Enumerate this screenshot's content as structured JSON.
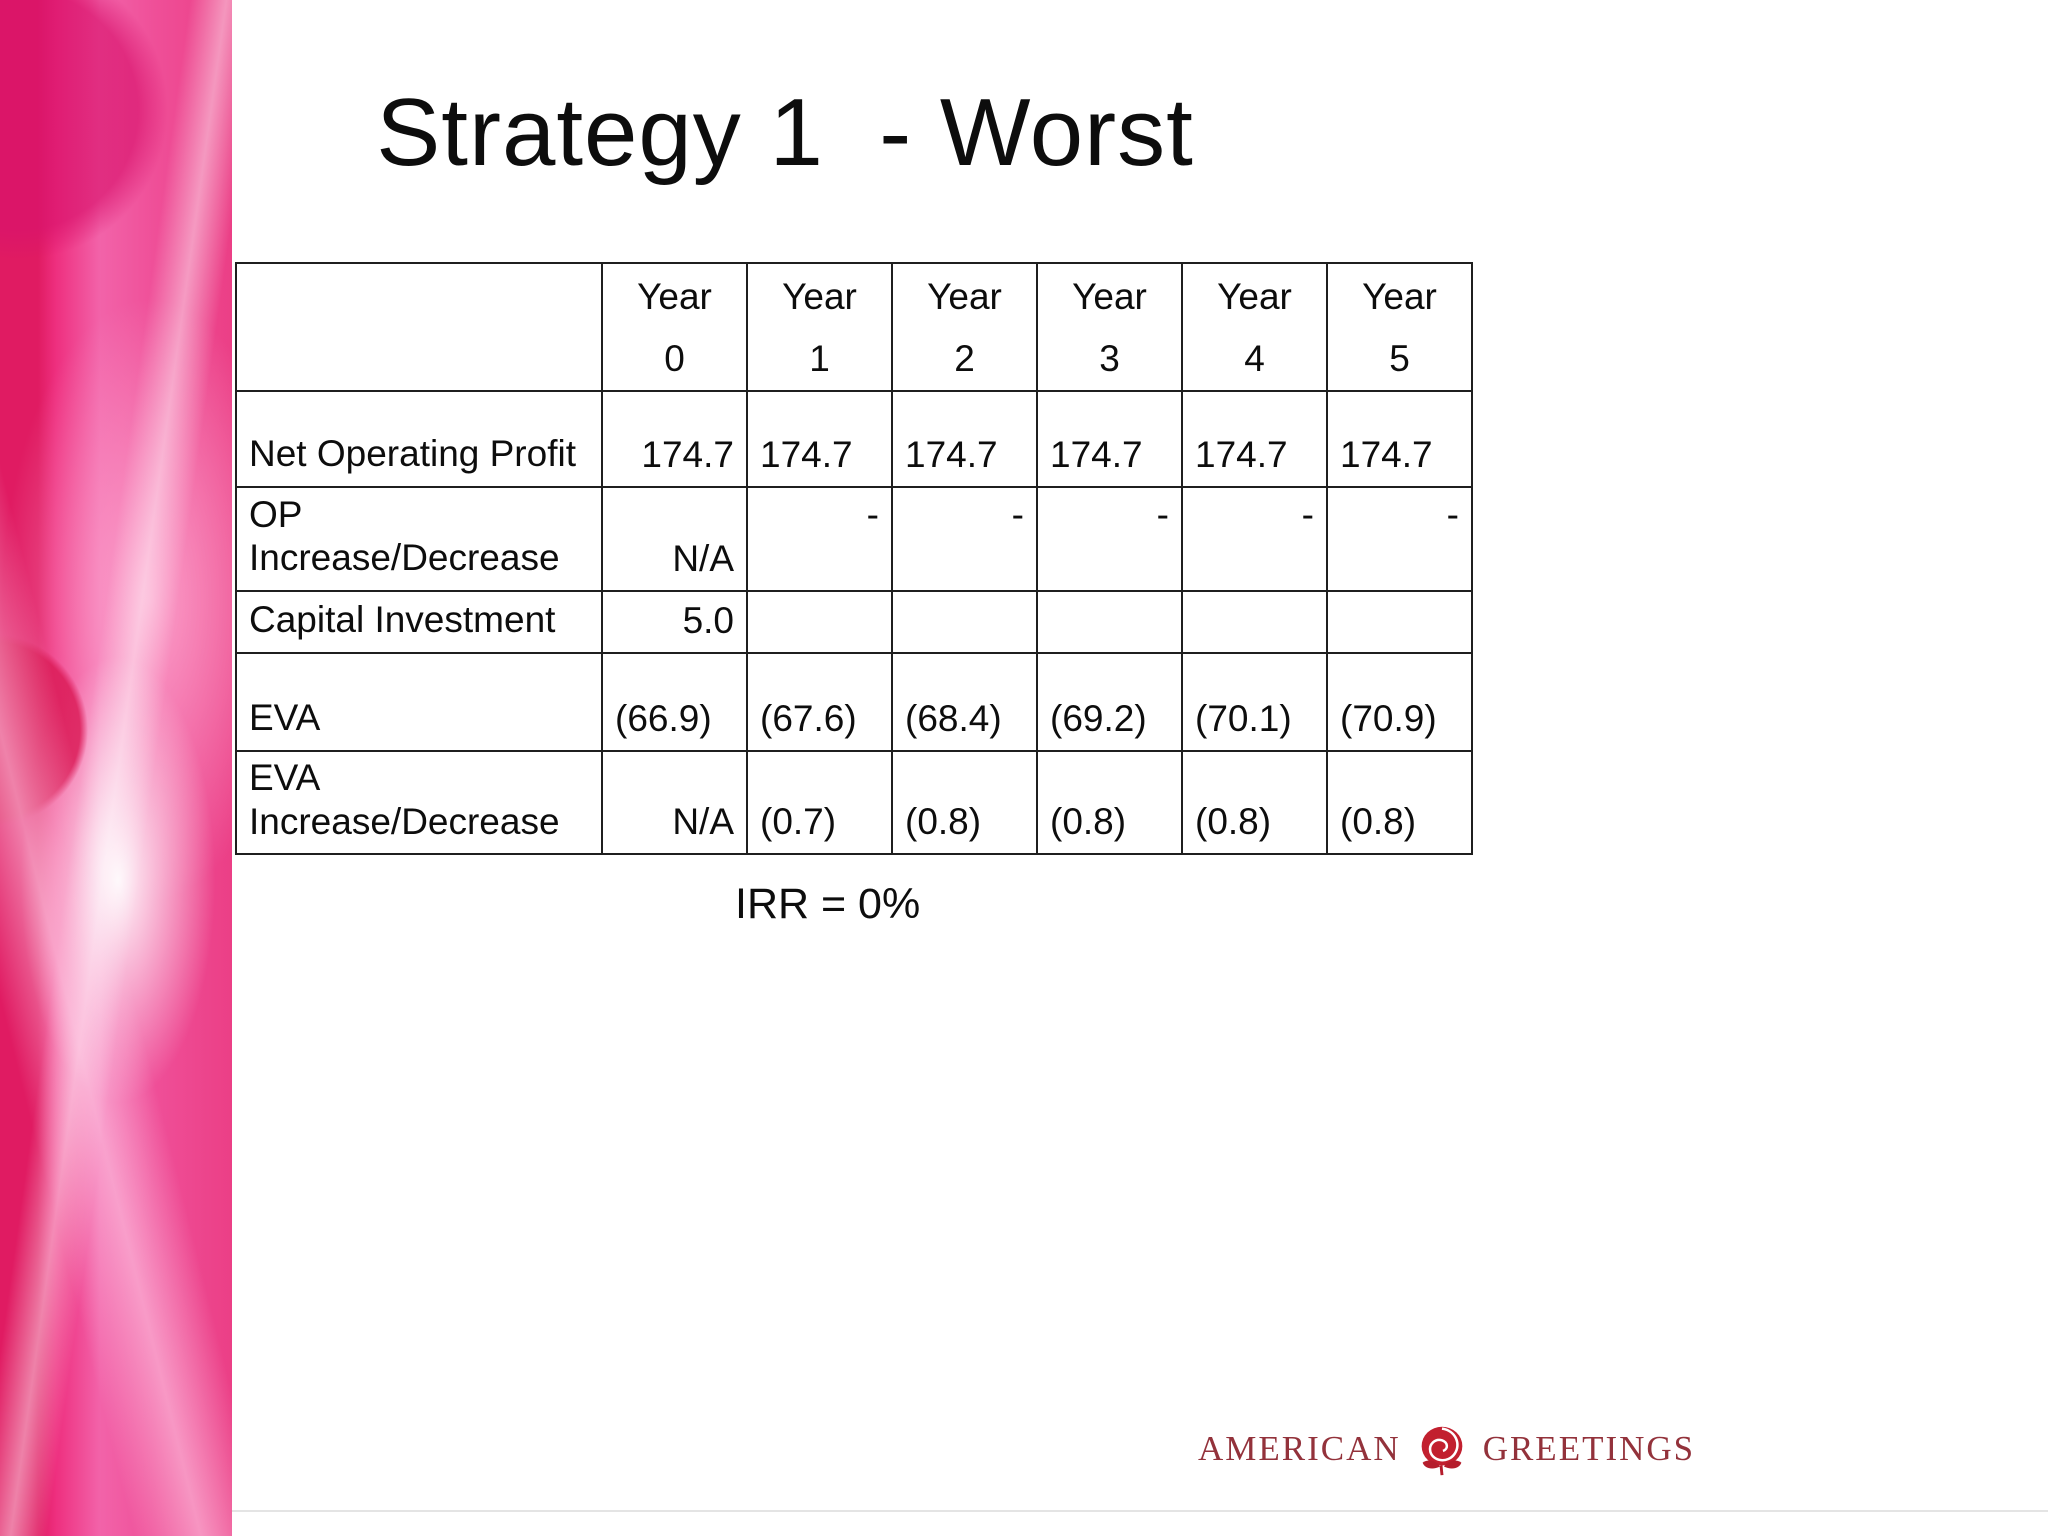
{
  "slide": {
    "title": "Strategy 1  - Worst",
    "irr_note": "IRR = 0%"
  },
  "logo": {
    "american": "AMERICAN",
    "greetings": "GREETINGS",
    "icon": "rose-icon"
  },
  "colors": {
    "band_pink": "#ee3f8c",
    "band_stripe_red": "#e01b62",
    "logo_red": "#93323b",
    "rose_red": "#c2202f",
    "table_border": "#1f1f1f"
  },
  "chart_data": {
    "type": "table",
    "year_headers": [
      {
        "word": "Year",
        "num": "0"
      },
      {
        "word": "Year",
        "num": "1"
      },
      {
        "word": "Year",
        "num": "2"
      },
      {
        "word": "Year",
        "num": "3"
      },
      {
        "word": "Year",
        "num": "4"
      },
      {
        "word": "Year",
        "num": "5"
      }
    ],
    "rows": [
      {
        "label": "Net Operating Profit",
        "values": [
          "174.7",
          "174.7",
          "174.7",
          "174.7",
          "174.7",
          "174.7"
        ]
      },
      {
        "label": "OP\nIncrease/Decrease",
        "values": [
          "N/A",
          "-",
          "-",
          "-",
          "-",
          "-"
        ]
      },
      {
        "label": "Capital Investment",
        "values": [
          "5.0",
          "",
          "",
          "",
          "",
          ""
        ]
      },
      {
        "label": "EVA",
        "values": [
          "(66.9)",
          "(67.6)",
          "(68.4)",
          "(69.2)",
          "(70.1)",
          "(70.9)"
        ]
      },
      {
        "label": "EVA\nIncrease/Decrease",
        "values": [
          "N/A",
          "(0.7)",
          "(0.8)",
          "(0.8)",
          "(0.8)",
          "(0.8)"
        ]
      }
    ],
    "title": "Strategy 1 - Worst",
    "footnote": "IRR = 0%"
  }
}
